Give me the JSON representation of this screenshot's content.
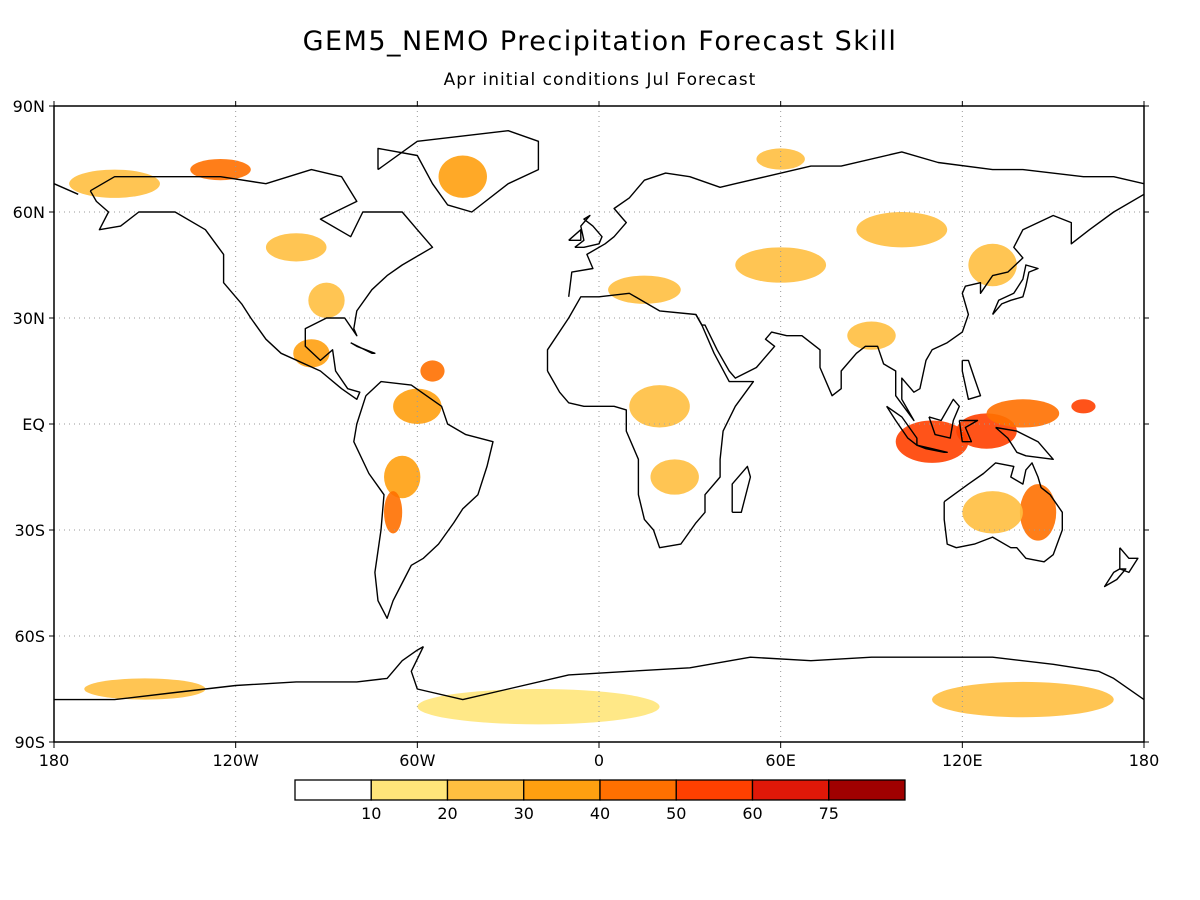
{
  "title": "GEM5_NEMO Precipitation Forecast Skill",
  "subtitle": "Apr initial conditions   Jul Forecast",
  "map": {
    "lon_range": [
      -180,
      180
    ],
    "lat_range": [
      -90,
      90
    ],
    "grid": true,
    "lon_ticks": [
      {
        "value": -180,
        "label": "180"
      },
      {
        "value": -120,
        "label": "120W"
      },
      {
        "value": -60,
        "label": "60W"
      },
      {
        "value": 0,
        "label": "0"
      },
      {
        "value": 60,
        "label": "60E"
      },
      {
        "value": 120,
        "label": "120E"
      },
      {
        "value": 180,
        "label": "180"
      }
    ],
    "lat_ticks": [
      {
        "value": 90,
        "label": "90N"
      },
      {
        "value": 60,
        "label": "60N"
      },
      {
        "value": 30,
        "label": "30N"
      },
      {
        "value": 0,
        "label": "EQ"
      },
      {
        "value": -30,
        "label": "30S"
      },
      {
        "value": -60,
        "label": "60S"
      },
      {
        "value": -90,
        "label": "90S"
      }
    ]
  },
  "colorbar": {
    "colors": [
      "#ffffff",
      "#ffe57a",
      "#ffbf40",
      "#ffa010",
      "#ff7000",
      "#ff4000",
      "#e01808",
      "#a00000"
    ],
    "labels": [
      "10",
      "20",
      "30",
      "40",
      "50",
      "60",
      "75"
    ]
  },
  "skill_regions": [
    {
      "lon": 110,
      "lat": -5,
      "rx": 12,
      "ry": 6,
      "level": 5
    },
    {
      "lon": 128,
      "lat": -2,
      "rx": 10,
      "ry": 5,
      "level": 5
    },
    {
      "lon": 140,
      "lat": 3,
      "rx": 12,
      "ry": 4,
      "level": 4
    },
    {
      "lon": 160,
      "lat": 5,
      "rx": 4,
      "ry": 2,
      "level": 5
    },
    {
      "lon": 145,
      "lat": -25,
      "rx": 6,
      "ry": 8,
      "level": 4
    },
    {
      "lon": 130,
      "lat": -25,
      "rx": 10,
      "ry": 6,
      "level": 2
    },
    {
      "lon": -55,
      "lat": 15,
      "rx": 4,
      "ry": 3,
      "level": 4
    },
    {
      "lon": -60,
      "lat": 5,
      "rx": 8,
      "ry": 5,
      "level": 3
    },
    {
      "lon": -65,
      "lat": -15,
      "rx": 6,
      "ry": 6,
      "level": 3
    },
    {
      "lon": -68,
      "lat": -25,
      "rx": 3,
      "ry": 6,
      "level": 4
    },
    {
      "lon": -95,
      "lat": 20,
      "rx": 6,
      "ry": 4,
      "level": 3
    },
    {
      "lon": -90,
      "lat": 35,
      "rx": 6,
      "ry": 5,
      "level": 2
    },
    {
      "lon": -100,
      "lat": 50,
      "rx": 10,
      "ry": 4,
      "level": 2
    },
    {
      "lon": -125,
      "lat": 72,
      "rx": 10,
      "ry": 3,
      "level": 4
    },
    {
      "lon": -160,
      "lat": 68,
      "rx": 15,
      "ry": 4,
      "level": 2
    },
    {
      "lon": -45,
      "lat": 70,
      "rx": 8,
      "ry": 6,
      "level": 3
    },
    {
      "lon": 15,
      "lat": 38,
      "rx": 12,
      "ry": 4,
      "level": 2
    },
    {
      "lon": 20,
      "lat": 5,
      "rx": 10,
      "ry": 6,
      "level": 2
    },
    {
      "lon": 25,
      "lat": -15,
      "rx": 8,
      "ry": 5,
      "level": 2
    },
    {
      "lon": 60,
      "lat": 45,
      "rx": 15,
      "ry": 5,
      "level": 2
    },
    {
      "lon": 100,
      "lat": 55,
      "rx": 15,
      "ry": 5,
      "level": 2
    },
    {
      "lon": 130,
      "lat": 45,
      "rx": 8,
      "ry": 6,
      "level": 2
    },
    {
      "lon": 90,
      "lat": 25,
      "rx": 8,
      "ry": 4,
      "level": 2
    },
    {
      "lon": 60,
      "lat": 75,
      "rx": 8,
      "ry": 3,
      "level": 2
    },
    {
      "lon": -20,
      "lat": -80,
      "rx": 40,
      "ry": 5,
      "level": 1
    },
    {
      "lon": 140,
      "lat": -78,
      "rx": 30,
      "ry": 5,
      "level": 2
    },
    {
      "lon": -150,
      "lat": -75,
      "rx": 20,
      "ry": 3,
      "level": 2
    }
  ]
}
